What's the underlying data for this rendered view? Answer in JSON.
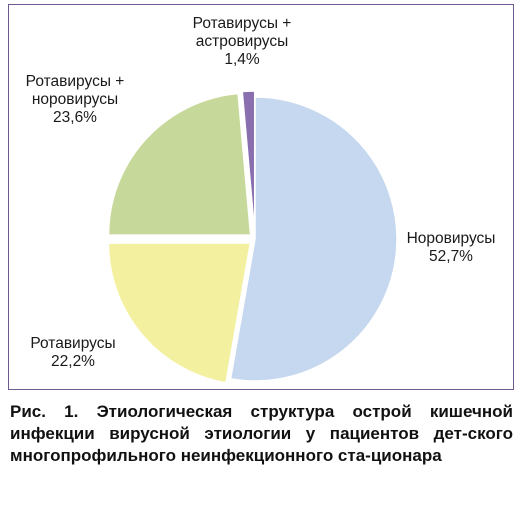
{
  "chart_data": {
    "type": "pie",
    "title": "",
    "slices": [
      {
        "label_lines": [
          "Норовирусы"
        ],
        "value_text": "52,7%",
        "value": 52.7,
        "color": "#c5d8ef"
      },
      {
        "label_lines": [
          "Ротавирусы"
        ],
        "value_text": "22,2%",
        "value": 22.2,
        "color": "#f3f0a0"
      },
      {
        "label_lines": [
          "Ротавирусы +",
          "норовирусы"
        ],
        "value_text": "23,6%",
        "value": 23.6,
        "color": "#c7d99a"
      },
      {
        "label_lines": [
          "Ротавирусы +",
          "астровирусы"
        ],
        "value_text": "1,4%",
        "value": 1.4,
        "color": "#8a6fb0"
      }
    ],
    "slice_stroke": "#ffffff",
    "frame_color": "#6e5a8e"
  },
  "caption": {
    "prefix": "Рис. 1.",
    "text": "Этиологическая структура острой кишечной инфекции вирусной этиологии у пациентов дет-ского многопрофильного неинфекционного ста-ционара"
  }
}
